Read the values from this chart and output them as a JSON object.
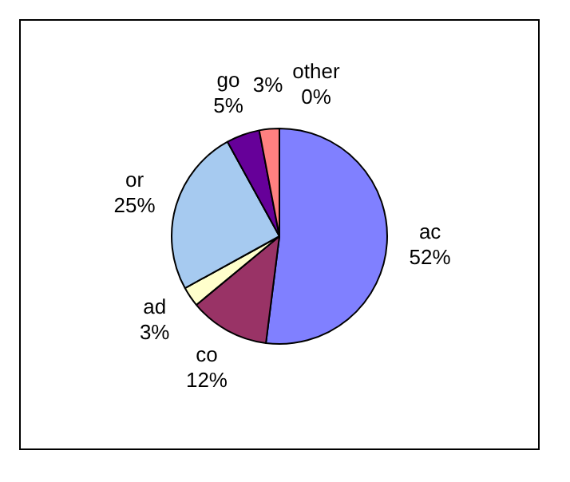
{
  "chart_data": {
    "type": "pie",
    "categories": [
      "ac",
      "co",
      "ad",
      "or",
      "go",
      null,
      "other"
    ],
    "values": [
      52,
      12,
      3,
      25,
      5,
      3,
      0
    ],
    "value_labels": [
      "52%",
      "12%",
      "3%",
      "25%",
      "5%",
      "3%",
      "0%"
    ],
    "colors": [
      "#8080ff",
      "#993366",
      "#ffffcc",
      "#a6caf0",
      "#660099",
      "#ff8080",
      "#0066cc"
    ],
    "legend": false
  }
}
